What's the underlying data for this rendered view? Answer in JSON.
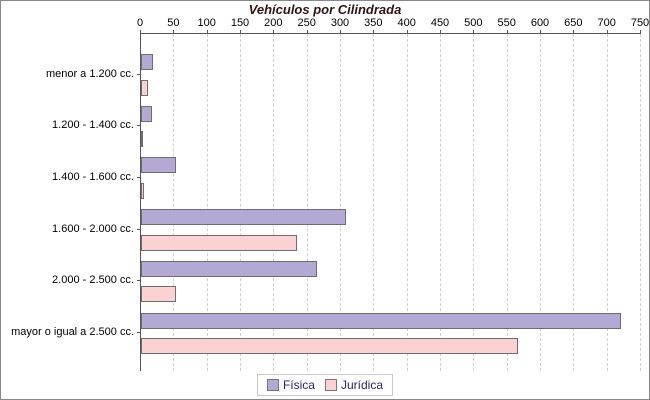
{
  "title": "Vehículos por Cilindrada",
  "colors": {
    "fisica_fill": "#b3a9d4",
    "juridica_fill": "#fcd1d1",
    "bar_border": "#6e6e6e",
    "axis_line": "#555555",
    "gridline": "#cfcfcf",
    "title_text": "#301414",
    "legend_text": "#2f2270"
  },
  "legend": {
    "items": [
      {
        "label": "Física",
        "color": "#b3a9d4"
      },
      {
        "label": "Jurídica",
        "color": "#fcd1d1"
      }
    ]
  },
  "chart_data": {
    "type": "bar",
    "orientation": "horizontal",
    "title": "Vehículos por Cilindrada",
    "categories": [
      "menor a 1.200 cc.",
      "1.200 - 1.400 cc.",
      "1.400 - 1.600 cc.",
      "1.600 - 2.000 cc.",
      "2.000 - 2.500 cc.",
      "mayor o igual a 2.500 cc."
    ],
    "series": [
      {
        "name": "Física",
        "color": "#b3a9d4",
        "values": [
          18,
          17,
          53,
          308,
          264,
          720
        ]
      },
      {
        "name": "Jurídica",
        "color": "#fcd1d1",
        "values": [
          10,
          2,
          4,
          234,
          52,
          565
        ]
      }
    ],
    "xlabel": "",
    "ylabel": "",
    "xlim": [
      0,
      750
    ],
    "xticks": [
      0,
      50,
      100,
      150,
      200,
      250,
      300,
      350,
      400,
      450,
      500,
      550,
      600,
      650,
      700,
      750
    ],
    "grid": "vertical-dashed",
    "axis_position": "top",
    "legend_position": "bottom"
  }
}
